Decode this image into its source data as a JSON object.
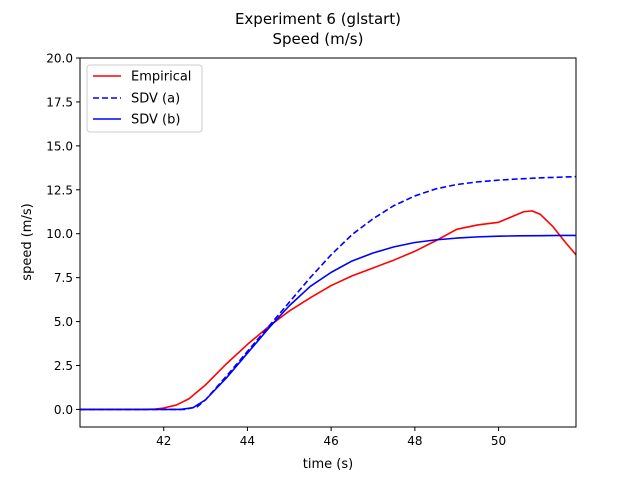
{
  "chart_data": {
    "type": "line",
    "title": "Experiment 6 (glstart)",
    "subtitle": "Speed (m/s)",
    "xlabel": "time (s)",
    "ylabel": "speed (m/s)",
    "xlim": [
      40.0,
      51.85
    ],
    "ylim": [
      -1.0,
      20.0
    ],
    "xticks": [
      42,
      44,
      46,
      48,
      50
    ],
    "yticks": [
      0.0,
      2.5,
      5.0,
      7.5,
      10.0,
      12.5,
      15.0,
      17.5,
      20.0
    ],
    "xtick_labels": [
      "42",
      "44",
      "46",
      "48",
      "50"
    ],
    "ytick_labels": [
      "0.0",
      "2.5",
      "5.0",
      "7.5",
      "10.0",
      "12.5",
      "15.0",
      "17.5",
      "20.0"
    ],
    "grid": false,
    "legend_position": "top-left",
    "series": [
      {
        "name": "Empirical",
        "color": "#ff0000",
        "dash": "solid",
        "points": [
          [
            40.0,
            0.0
          ],
          [
            41.5,
            0.0
          ],
          [
            41.8,
            0.02
          ],
          [
            42.0,
            0.08
          ],
          [
            42.3,
            0.25
          ],
          [
            42.6,
            0.6
          ],
          [
            43.0,
            1.4
          ],
          [
            43.5,
            2.6
          ],
          [
            44.0,
            3.7
          ],
          [
            44.5,
            4.7
          ],
          [
            45.0,
            5.6
          ],
          [
            45.5,
            6.35
          ],
          [
            46.0,
            7.05
          ],
          [
            46.5,
            7.6
          ],
          [
            47.0,
            8.05
          ],
          [
            47.5,
            8.5
          ],
          [
            48.0,
            9.0
          ],
          [
            48.5,
            9.6
          ],
          [
            49.0,
            10.25
          ],
          [
            49.5,
            10.5
          ],
          [
            50.0,
            10.65
          ],
          [
            50.3,
            10.95
          ],
          [
            50.6,
            11.25
          ],
          [
            50.8,
            11.3
          ],
          [
            51.0,
            11.1
          ],
          [
            51.3,
            10.4
          ],
          [
            51.6,
            9.5
          ],
          [
            51.85,
            8.8
          ]
        ]
      },
      {
        "name": "SDV (a)",
        "color": "#0000ff",
        "dash": "dashed",
        "points": [
          [
            40.0,
            0.0
          ],
          [
            42.5,
            0.0
          ],
          [
            42.8,
            0.15
          ],
          [
            43.0,
            0.55
          ],
          [
            43.5,
            1.9
          ],
          [
            44.0,
            3.3
          ],
          [
            44.5,
            4.7
          ],
          [
            45.0,
            6.1
          ],
          [
            45.5,
            7.5
          ],
          [
            46.0,
            8.8
          ],
          [
            46.5,
            9.95
          ],
          [
            47.0,
            10.85
          ],
          [
            47.5,
            11.6
          ],
          [
            48.0,
            12.15
          ],
          [
            48.5,
            12.55
          ],
          [
            49.0,
            12.8
          ],
          [
            49.5,
            12.95
          ],
          [
            50.0,
            13.05
          ],
          [
            50.5,
            13.12
          ],
          [
            51.0,
            13.18
          ],
          [
            51.5,
            13.22
          ],
          [
            51.85,
            13.25
          ]
        ]
      },
      {
        "name": "SDV (b)",
        "color": "#0000ff",
        "dash": "solid",
        "points": [
          [
            40.0,
            0.0
          ],
          [
            42.4,
            0.0
          ],
          [
            42.7,
            0.1
          ],
          [
            43.0,
            0.55
          ],
          [
            43.5,
            1.8
          ],
          [
            44.0,
            3.2
          ],
          [
            44.5,
            4.6
          ],
          [
            45.0,
            5.9
          ],
          [
            45.5,
            7.0
          ],
          [
            46.0,
            7.8
          ],
          [
            46.5,
            8.45
          ],
          [
            47.0,
            8.9
          ],
          [
            47.5,
            9.25
          ],
          [
            48.0,
            9.5
          ],
          [
            48.5,
            9.65
          ],
          [
            49.0,
            9.75
          ],
          [
            49.5,
            9.82
          ],
          [
            50.0,
            9.86
          ],
          [
            50.5,
            9.88
          ],
          [
            51.0,
            9.89
          ],
          [
            51.5,
            9.9
          ],
          [
            51.85,
            9.9
          ]
        ]
      }
    ]
  }
}
